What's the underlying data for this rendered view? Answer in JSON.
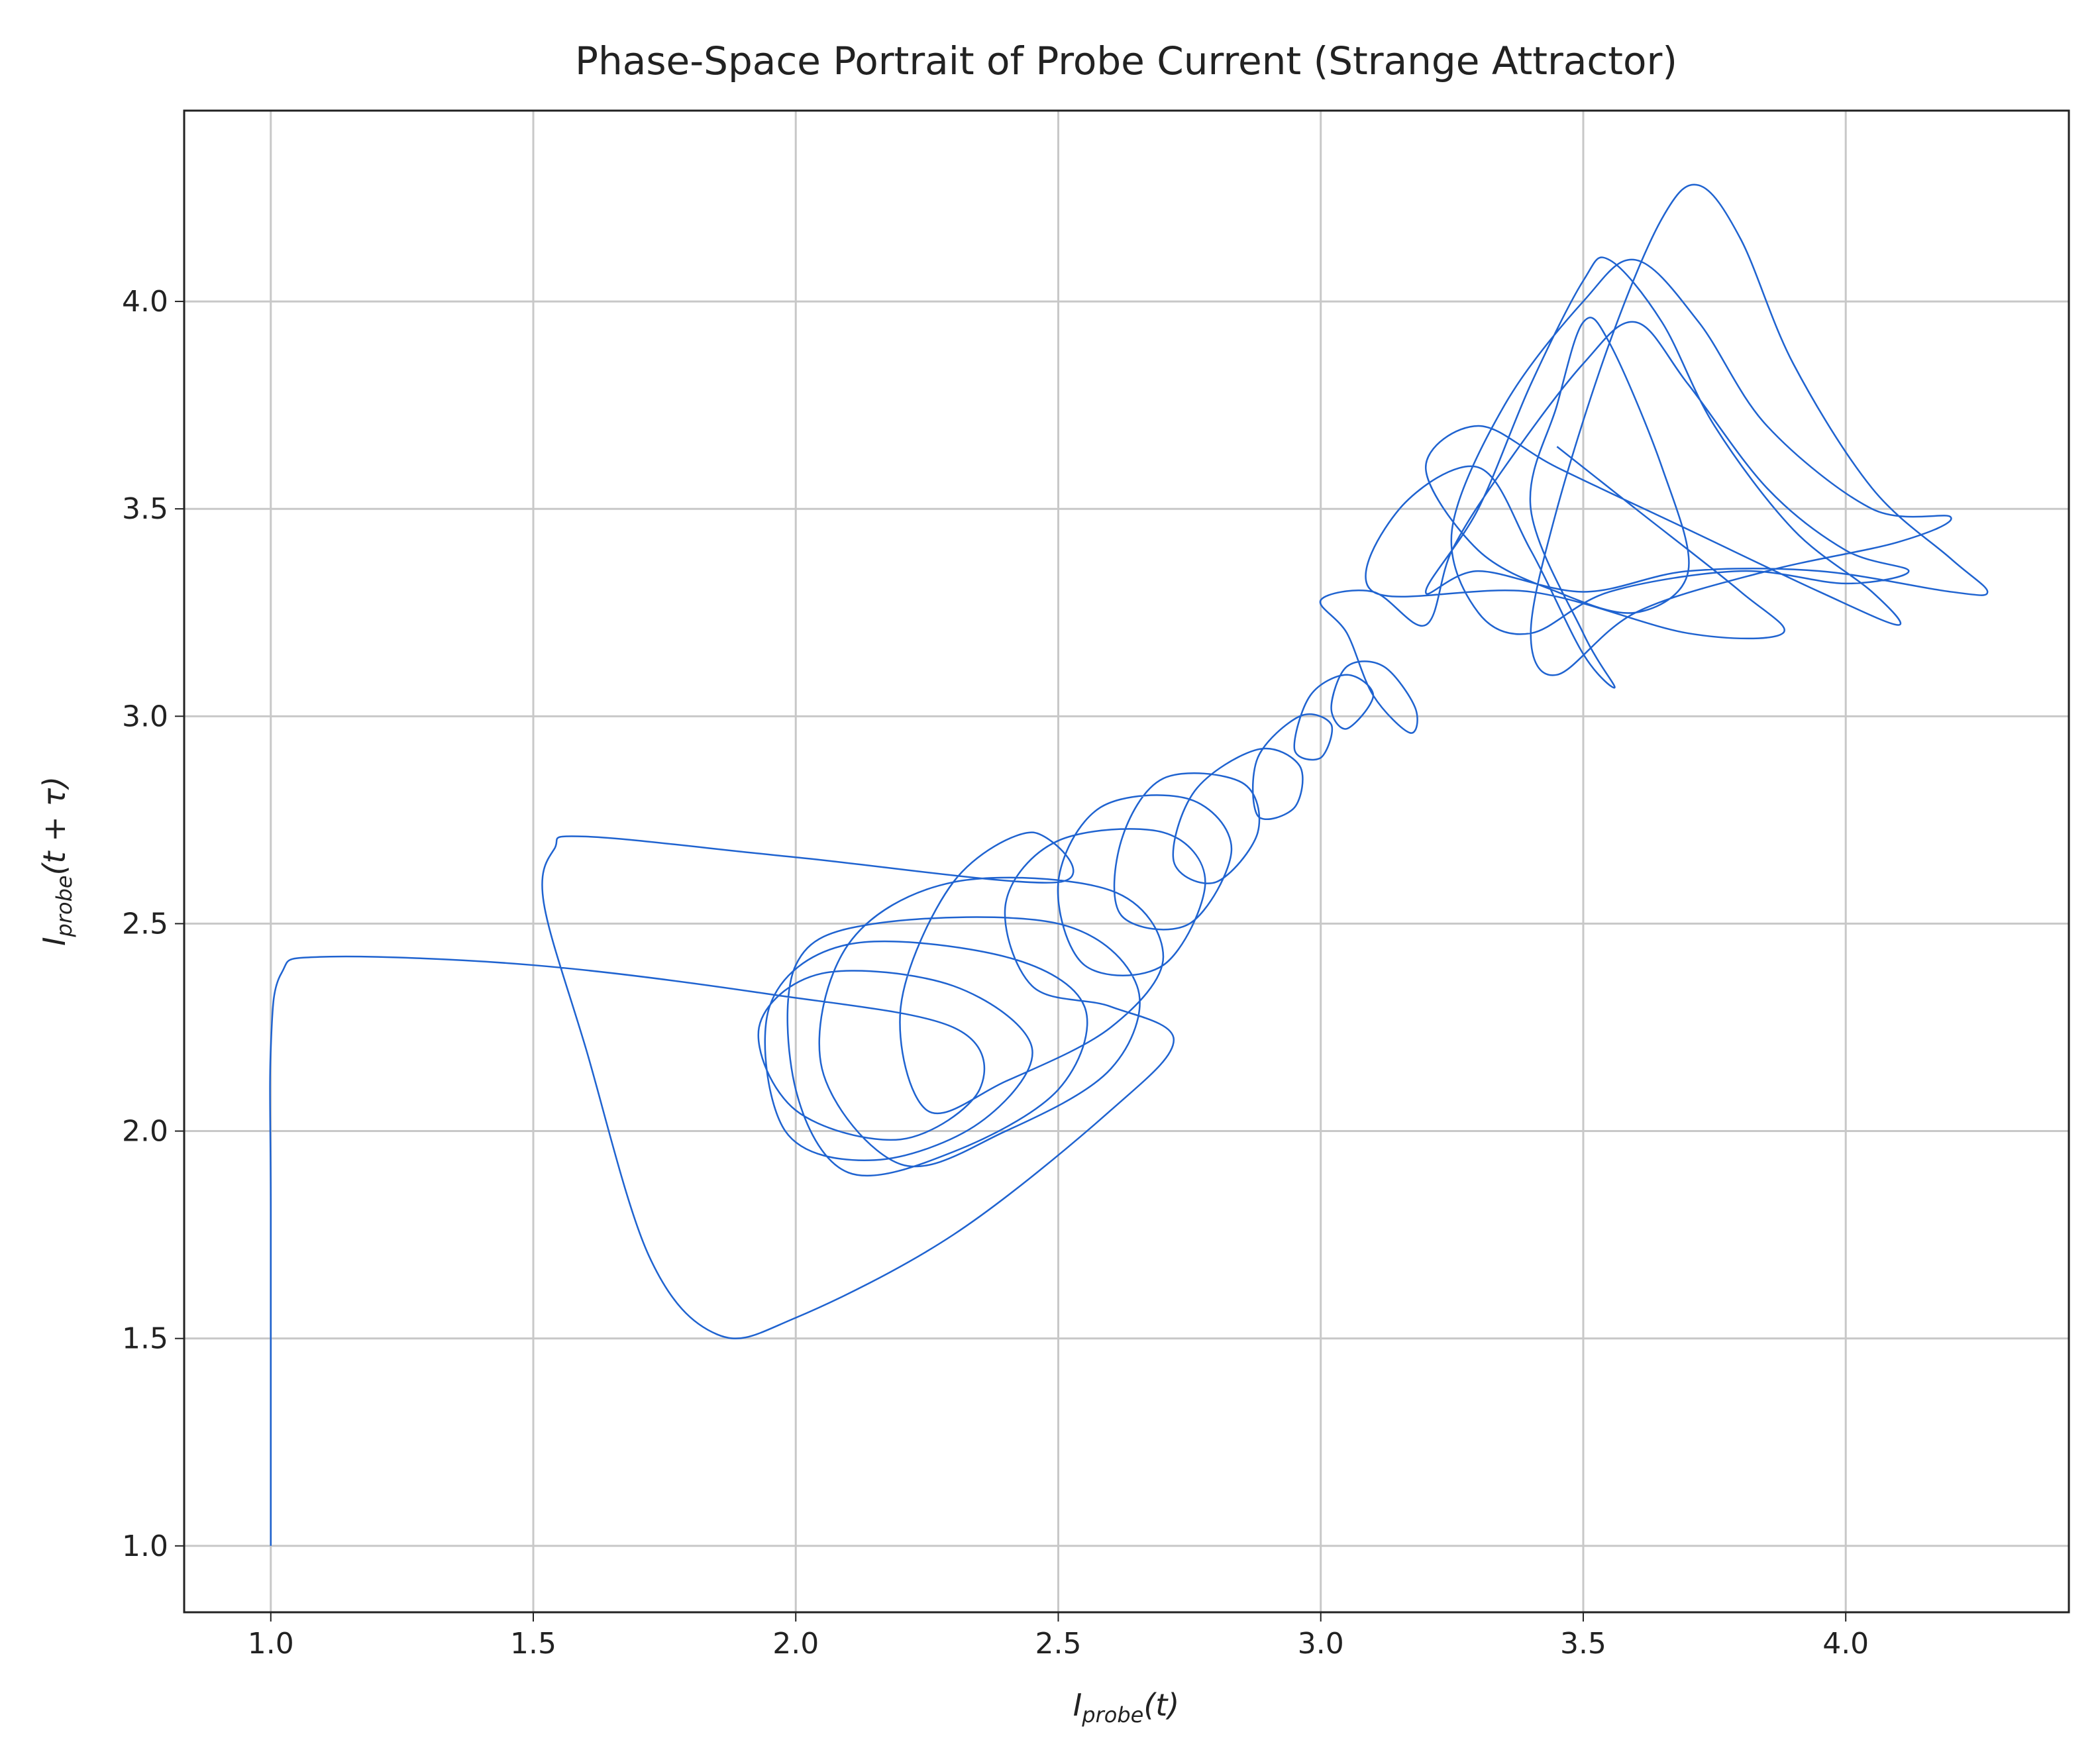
{
  "chart_data": {
    "type": "line",
    "title": "Phase-Space Portrait of Probe Current (Strange Attractor)",
    "xlabel": [
      "I",
      "probe",
      "(t)"
    ],
    "ylabel": [
      "I",
      "probe",
      "(t + τ)"
    ],
    "xlim": [
      0.835,
      4.425
    ],
    "ylim": [
      0.84,
      4.46
    ],
    "xticks": [
      {
        "value": 1.0,
        "label": "1.0"
      },
      {
        "value": 1.5,
        "label": "1.5"
      },
      {
        "value": 2.0,
        "label": "2.0"
      },
      {
        "value": 2.5,
        "label": "2.5"
      },
      {
        "value": 3.0,
        "label": "3.0"
      },
      {
        "value": 3.5,
        "label": "3.5"
      },
      {
        "value": 4.0,
        "label": "4.0"
      }
    ],
    "yticks": [
      {
        "value": 1.0,
        "label": "1.0"
      },
      {
        "value": 1.5,
        "label": "1.5"
      },
      {
        "value": 2.0,
        "label": "2.0"
      },
      {
        "value": 2.5,
        "label": "2.5"
      },
      {
        "value": 3.0,
        "label": "3.0"
      },
      {
        "value": 3.5,
        "label": "3.5"
      },
      {
        "value": 4.0,
        "label": "4.0"
      }
    ],
    "grid": true,
    "color": "#1f63d0",
    "x": [
      1.0,
      1.0,
      1.0,
      1.02,
      1.1,
      1.5,
      1.95,
      2.3,
      2.35,
      2.2,
      2.0,
      1.93,
      2.05,
      2.3,
      2.45,
      2.35,
      2.15,
      1.98,
      1.95,
      2.1,
      2.4,
      2.55,
      2.5,
      2.3,
      2.1,
      2.0,
      2.0,
      2.15,
      2.5,
      2.65,
      2.6,
      2.4,
      2.2,
      2.05,
      2.1,
      2.3,
      2.6,
      2.7,
      2.6,
      2.4,
      2.25,
      2.2,
      2.3,
      2.45,
      2.5,
      2.0,
      1.6,
      1.54,
      1.52,
      1.6,
      1.72,
      1.85,
      2.0,
      2.3,
      2.6,
      2.72,
      2.6,
      2.45,
      2.4,
      2.5,
      2.7,
      2.78,
      2.7,
      2.55,
      2.5,
      2.58,
      2.75,
      2.83,
      2.75,
      2.62,
      2.62,
      2.7,
      2.85,
      2.88,
      2.8,
      2.72,
      2.76,
      2.88,
      2.96,
      2.95,
      2.88,
      2.88,
      2.96,
      3.02,
      3.0,
      2.95,
      2.98,
      3.05,
      3.1,
      3.05,
      3.02,
      3.05,
      3.12,
      3.18,
      3.17,
      3.1,
      3.05,
      3.0,
      3.1,
      3.2,
      3.25,
      3.35,
      3.5,
      3.6,
      3.7,
      3.85,
      4.0,
      4.12,
      4.0,
      3.8,
      3.55,
      3.4,
      3.3,
      3.25,
      3.35,
      3.5,
      3.6,
      3.72,
      3.85,
      4.05,
      4.2,
      4.1,
      3.85,
      3.6,
      3.45,
      3.4,
      3.45,
      3.55,
      3.65,
      3.72,
      3.8,
      3.9,
      4.05,
      4.2,
      4.27,
      4.2,
      3.95,
      3.7,
      3.5,
      3.3,
      3.2,
      3.3,
      3.4,
      3.5,
      3.55,
      3.65,
      3.75,
      3.9,
      4.05,
      4.1,
      3.95,
      3.7,
      3.45,
      3.3,
      3.2,
      3.3,
      3.45,
      3.6,
      3.7,
      3.65,
      3.55,
      3.5,
      3.45,
      3.4,
      3.5,
      3.56,
      3.5,
      3.4,
      3.3,
      3.15,
      3.1,
      3.4,
      3.7,
      3.88,
      3.8,
      3.6,
      3.45
    ],
    "y": [
      1.0,
      1.8,
      2.2,
      2.38,
      2.42,
      2.4,
      2.33,
      2.25,
      2.1,
      1.98,
      2.05,
      2.25,
      2.38,
      2.35,
      2.2,
      2.02,
      1.93,
      2.0,
      2.3,
      2.45,
      2.42,
      2.3,
      2.1,
      1.95,
      1.9,
      2.1,
      2.4,
      2.5,
      2.5,
      2.35,
      2.15,
      2.0,
      1.92,
      2.15,
      2.45,
      2.6,
      2.58,
      2.42,
      2.25,
      2.12,
      2.05,
      2.3,
      2.6,
      2.72,
      2.6,
      2.66,
      2.71,
      2.68,
      2.55,
      2.2,
      1.7,
      1.51,
      1.55,
      1.75,
      2.05,
      2.22,
      2.3,
      2.35,
      2.55,
      2.7,
      2.72,
      2.6,
      2.4,
      2.4,
      2.6,
      2.78,
      2.8,
      2.68,
      2.5,
      2.52,
      2.7,
      2.85,
      2.84,
      2.72,
      2.6,
      2.65,
      2.82,
      2.92,
      2.88,
      2.78,
      2.76,
      2.9,
      3.0,
      2.98,
      2.9,
      2.92,
      3.05,
      3.1,
      3.05,
      2.97,
      3.02,
      3.12,
      3.12,
      3.02,
      2.96,
      3.05,
      3.2,
      3.28,
      3.3,
      3.22,
      3.4,
      3.6,
      3.85,
      3.95,
      3.8,
      3.55,
      3.4,
      3.35,
      3.32,
      3.35,
      3.3,
      3.2,
      3.25,
      3.45,
      3.75,
      4.0,
      4.1,
      3.95,
      3.7,
      3.5,
      3.48,
      3.42,
      3.35,
      3.25,
      3.1,
      3.2,
      3.5,
      3.9,
      4.2,
      4.28,
      4.15,
      3.85,
      3.55,
      3.38,
      3.3,
      3.3,
      3.35,
      3.35,
      3.3,
      3.35,
      3.3,
      3.5,
      3.8,
      4.05,
      4.1,
      3.95,
      3.7,
      3.45,
      3.3,
      3.22,
      3.3,
      3.45,
      3.6,
      3.7,
      3.6,
      3.4,
      3.3,
      3.25,
      3.35,
      3.6,
      3.9,
      3.95,
      3.75,
      3.5,
      3.2,
      3.07,
      3.15,
      3.4,
      3.6,
      3.5,
      3.3,
      3.3,
      3.2,
      3.2,
      3.3,
      3.5,
      3.65
    ]
  }
}
